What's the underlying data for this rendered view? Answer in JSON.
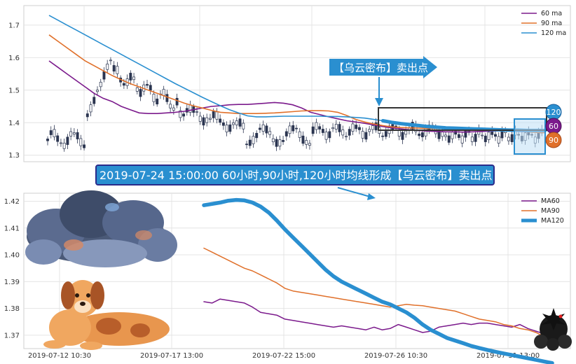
{
  "chart_data": [
    {
      "type": "line",
      "panel": "top",
      "ylim": [
        1.28,
        1.76
      ],
      "y_ticks": [
        "1.3",
        "1.4",
        "1.5",
        "1.6",
        "1.7"
      ],
      "grid": true,
      "legend_position": "top-right",
      "series": [
        {
          "name": "60 ma",
          "color": "#7b1a8c",
          "values": [
            1.59,
            1.57,
            1.55,
            1.53,
            1.51,
            1.49,
            1.475,
            1.465,
            1.45,
            1.44,
            1.43,
            1.428,
            1.428,
            1.43,
            1.432,
            1.435,
            1.44,
            1.445,
            1.45,
            1.452,
            1.455,
            1.456,
            1.456,
            1.458,
            1.46,
            1.462,
            1.46,
            1.455,
            1.445,
            1.432,
            1.425,
            1.418,
            1.412,
            1.406,
            1.402,
            1.398,
            1.393,
            1.388,
            1.384,
            1.381,
            1.378,
            1.376,
            1.374,
            1.373,
            1.372,
            1.372,
            1.371,
            1.372,
            1.373,
            1.374,
            1.375,
            1.374,
            1.373,
            1.372,
            1.371,
            1.37
          ]
        },
        {
          "name": "90 ma",
          "color": "#e0702a",
          "values": [
            1.67,
            1.65,
            1.63,
            1.61,
            1.59,
            1.575,
            1.56,
            1.545,
            1.532,
            1.52,
            1.51,
            1.5,
            1.49,
            1.48,
            1.47,
            1.46,
            1.452,
            1.445,
            1.438,
            1.432,
            1.43,
            1.428,
            1.428,
            1.428,
            1.429,
            1.43,
            1.432,
            1.434,
            1.436,
            1.437,
            1.437,
            1.436,
            1.432,
            1.422,
            1.41,
            1.402,
            1.396,
            1.391,
            1.387,
            1.385,
            1.384,
            1.383,
            1.382,
            1.382,
            1.382,
            1.383,
            1.383,
            1.382,
            1.381,
            1.38,
            1.378,
            1.376,
            1.374,
            1.372,
            1.37,
            1.369
          ]
        },
        {
          "name": "120 ma",
          "color": "#2a8fd0",
          "values": [
            1.73,
            1.715,
            1.7,
            1.685,
            1.67,
            1.655,
            1.64,
            1.625,
            1.61,
            1.595,
            1.58,
            1.565,
            1.55,
            1.535,
            1.52,
            1.506,
            1.492,
            1.478,
            1.465,
            1.452,
            1.44,
            1.43,
            1.421,
            1.418,
            1.418,
            1.419,
            1.42,
            1.42,
            1.42,
            1.42,
            1.42,
            1.419,
            1.419,
            1.418,
            1.416,
            1.414,
            1.41,
            1.406,
            1.401,
            1.397,
            1.394,
            1.391,
            1.388,
            1.386,
            1.384,
            1.383,
            1.382,
            1.381,
            1.38,
            1.379,
            1.378,
            1.377,
            1.377,
            1.376,
            1.376,
            1.376
          ]
        }
      ],
      "annotations": {
        "arrow_label": "【乌云密布】卖出点",
        "badge_120": "120",
        "badge_60": "60",
        "badge_90": "90"
      }
    },
    {
      "type": "line",
      "panel": "bottom",
      "ylim": [
        1.365,
        1.423
      ],
      "y_ticks": [
        "1.37",
        "1.38",
        "1.39",
        "1.40",
        "1.41",
        "1.42"
      ],
      "x_tick_labels": [
        "2019-07-12 10:30",
        "2019-07-17 13:00",
        "2019-07-22 15:00",
        "2019-07-26 10:30",
        "2019-07-31 13:00"
      ],
      "grid": true,
      "legend_position": "top-right",
      "series": [
        {
          "name": "MA60",
          "color": "#7b1a8c",
          "values": [
            1.3825,
            1.382,
            1.3835,
            1.383,
            1.3825,
            1.382,
            1.3805,
            1.3785,
            1.378,
            1.3775,
            1.376,
            1.3755,
            1.375,
            1.3745,
            1.374,
            1.3735,
            1.373,
            1.3735,
            1.373,
            1.3725,
            1.372,
            1.373,
            1.372,
            1.3725,
            1.374,
            1.373,
            1.372,
            1.371,
            1.3715,
            1.373,
            1.3735,
            1.374,
            1.3745,
            1.374,
            1.3745,
            1.3745,
            1.374,
            1.3735,
            1.373,
            1.374,
            1.3725,
            1.3715,
            1.3705,
            1.3695
          ]
        },
        {
          "name": "MA90",
          "color": "#e0702a",
          "values": [
            1.4025,
            1.401,
            1.3995,
            1.398,
            1.3965,
            1.395,
            1.394,
            1.3925,
            1.391,
            1.3895,
            1.3875,
            1.3865,
            1.386,
            1.3855,
            1.385,
            1.3845,
            1.384,
            1.3835,
            1.383,
            1.3825,
            1.382,
            1.3815,
            1.381,
            1.3805,
            1.381,
            1.3815,
            1.3812,
            1.381,
            1.3805,
            1.38,
            1.3795,
            1.379,
            1.378,
            1.377,
            1.376,
            1.3755,
            1.375,
            1.374,
            1.3735,
            1.3725,
            1.372,
            1.371,
            1.3695,
            1.3685
          ]
        },
        {
          "name": "MA120",
          "color": "#2a8fd0",
          "values": [
            1.4185,
            1.419,
            1.4195,
            1.4202,
            1.4205,
            1.4203,
            1.4195,
            1.418,
            1.4158,
            1.4128,
            1.4095,
            1.4065,
            1.4035,
            1.4005,
            1.3975,
            1.3945,
            1.392,
            1.39,
            1.3885,
            1.387,
            1.3855,
            1.384,
            1.3825,
            1.3815,
            1.38,
            1.3785,
            1.3765,
            1.374,
            1.372,
            1.3705,
            1.369,
            1.368,
            1.367,
            1.366,
            1.3652,
            1.3645,
            1.3638,
            1.3632,
            1.3626,
            1.362,
            1.3614,
            1.3608,
            1.3602,
            1.3596
          ]
        }
      ],
      "annotations": {
        "banner_text": "2019-07-24 15:00:00 60小时,90小时,120小时均线形成【乌云密布】卖出点"
      }
    }
  ]
}
